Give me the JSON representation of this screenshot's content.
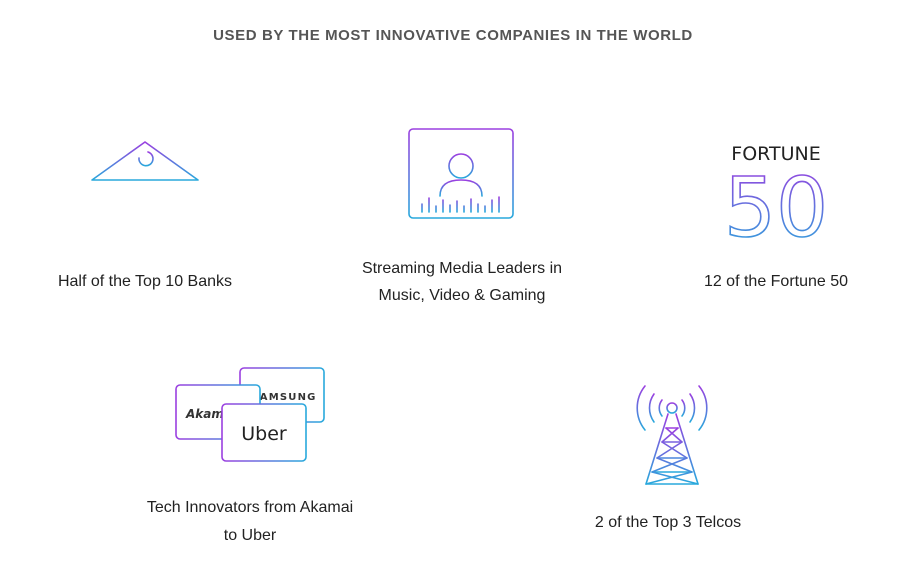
{
  "header": {
    "title": "USED BY THE MOST INNOVATIVE COMPANIES IN THE WORLD"
  },
  "items": [
    {
      "caption": [
        "Half of the Top 10 Banks"
      ]
    },
    {
      "caption": [
        "Streaming Media Leaders in",
        "Music, Video & Gaming"
      ]
    },
    {
      "caption": [
        "12 of the Fortune 50"
      ],
      "logo": {
        "word": "FORTUNE",
        "number": "50"
      }
    },
    {
      "caption": [
        "Tech Innovators from Akamai",
        "to Uber"
      ],
      "logos": [
        "Akamai",
        "SAMSUNG",
        "Uber"
      ]
    },
    {
      "caption": [
        "2 of the Top 3 Telcos"
      ]
    }
  ]
}
